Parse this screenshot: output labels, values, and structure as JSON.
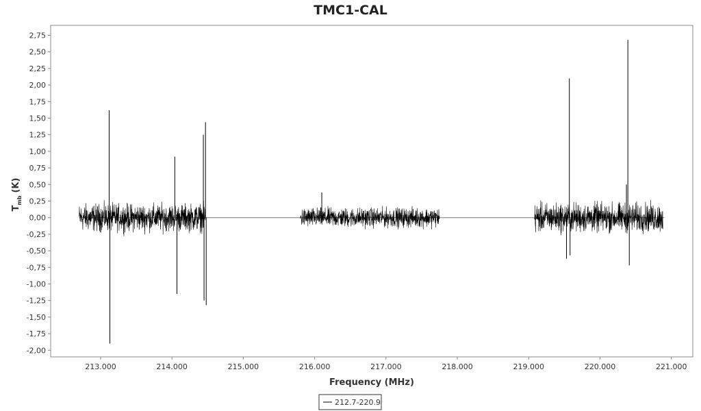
{
  "chart_data": {
    "type": "line",
    "title": "TMC1-CAL",
    "xlabel": "Frequency (MHz)",
    "ylabel": {
      "main": "T",
      "subscript": "mb",
      "unit": "(K)"
    },
    "xlim": [
      212.3,
      221.3
    ],
    "ylim": [
      -2.1,
      2.9
    ],
    "x_ticks": [
      213.0,
      214.0,
      215.0,
      216.0,
      217.0,
      218.0,
      219.0,
      220.0,
      221.0
    ],
    "x_tick_labels": [
      "213.000",
      "214.000",
      "215.000",
      "216.000",
      "217.000",
      "218.000",
      "219.000",
      "220.000",
      "221.000"
    ],
    "y_ticks": [
      2.75,
      2.5,
      2.25,
      2.0,
      1.75,
      1.5,
      1.25,
      1.0,
      0.75,
      0.5,
      0.25,
      0.0,
      -0.25,
      -0.5,
      -0.75,
      -1.0,
      -1.25,
      -1.5,
      -1.75,
      -2.0
    ],
    "y_tick_labels": [
      "2,75",
      "2,50",
      "2,25",
      "2,00",
      "1,75",
      "1,50",
      "1,25",
      "1,00",
      "0,75",
      "0,50",
      "0,25",
      "0,00",
      "-0,25",
      "-0,50",
      "-0,75",
      "-1,00",
      "-1,25",
      "-1,50",
      "-1,75",
      "-2,00"
    ],
    "grid": false,
    "legend_position": "bottom-center",
    "series": [
      {
        "name": "212.7-220.9",
        "color": "#000000",
        "baseline_color": "#777777",
        "x_range": [
          212.7,
          220.9
        ],
        "bands": [
          {
            "x_start": 212.7,
            "x_end": 214.47,
            "noise_amplitude": 0.28
          },
          {
            "x_start": 215.8,
            "x_end": 217.75,
            "noise_amplitude": 0.2
          },
          {
            "x_start": 219.08,
            "x_end": 220.88,
            "noise_amplitude": 0.3
          }
        ],
        "spikes": [
          {
            "x": 213.12,
            "y": 1.62
          },
          {
            "x": 213.13,
            "y": -1.9
          },
          {
            "x": 214.04,
            "y": 0.92
          },
          {
            "x": 214.07,
            "y": -1.15
          },
          {
            "x": 214.44,
            "y": 1.25
          },
          {
            "x": 214.45,
            "y": -1.25
          },
          {
            "x": 214.47,
            "y": 1.44
          },
          {
            "x": 214.48,
            "y": -1.32
          },
          {
            "x": 216.1,
            "y": 0.38
          },
          {
            "x": 219.53,
            "y": -0.62
          },
          {
            "x": 219.57,
            "y": 2.1
          },
          {
            "x": 219.58,
            "y": -0.57
          },
          {
            "x": 220.37,
            "y": 0.5
          },
          {
            "x": 220.39,
            "y": 2.68
          },
          {
            "x": 220.41,
            "y": -0.72
          }
        ]
      }
    ]
  }
}
